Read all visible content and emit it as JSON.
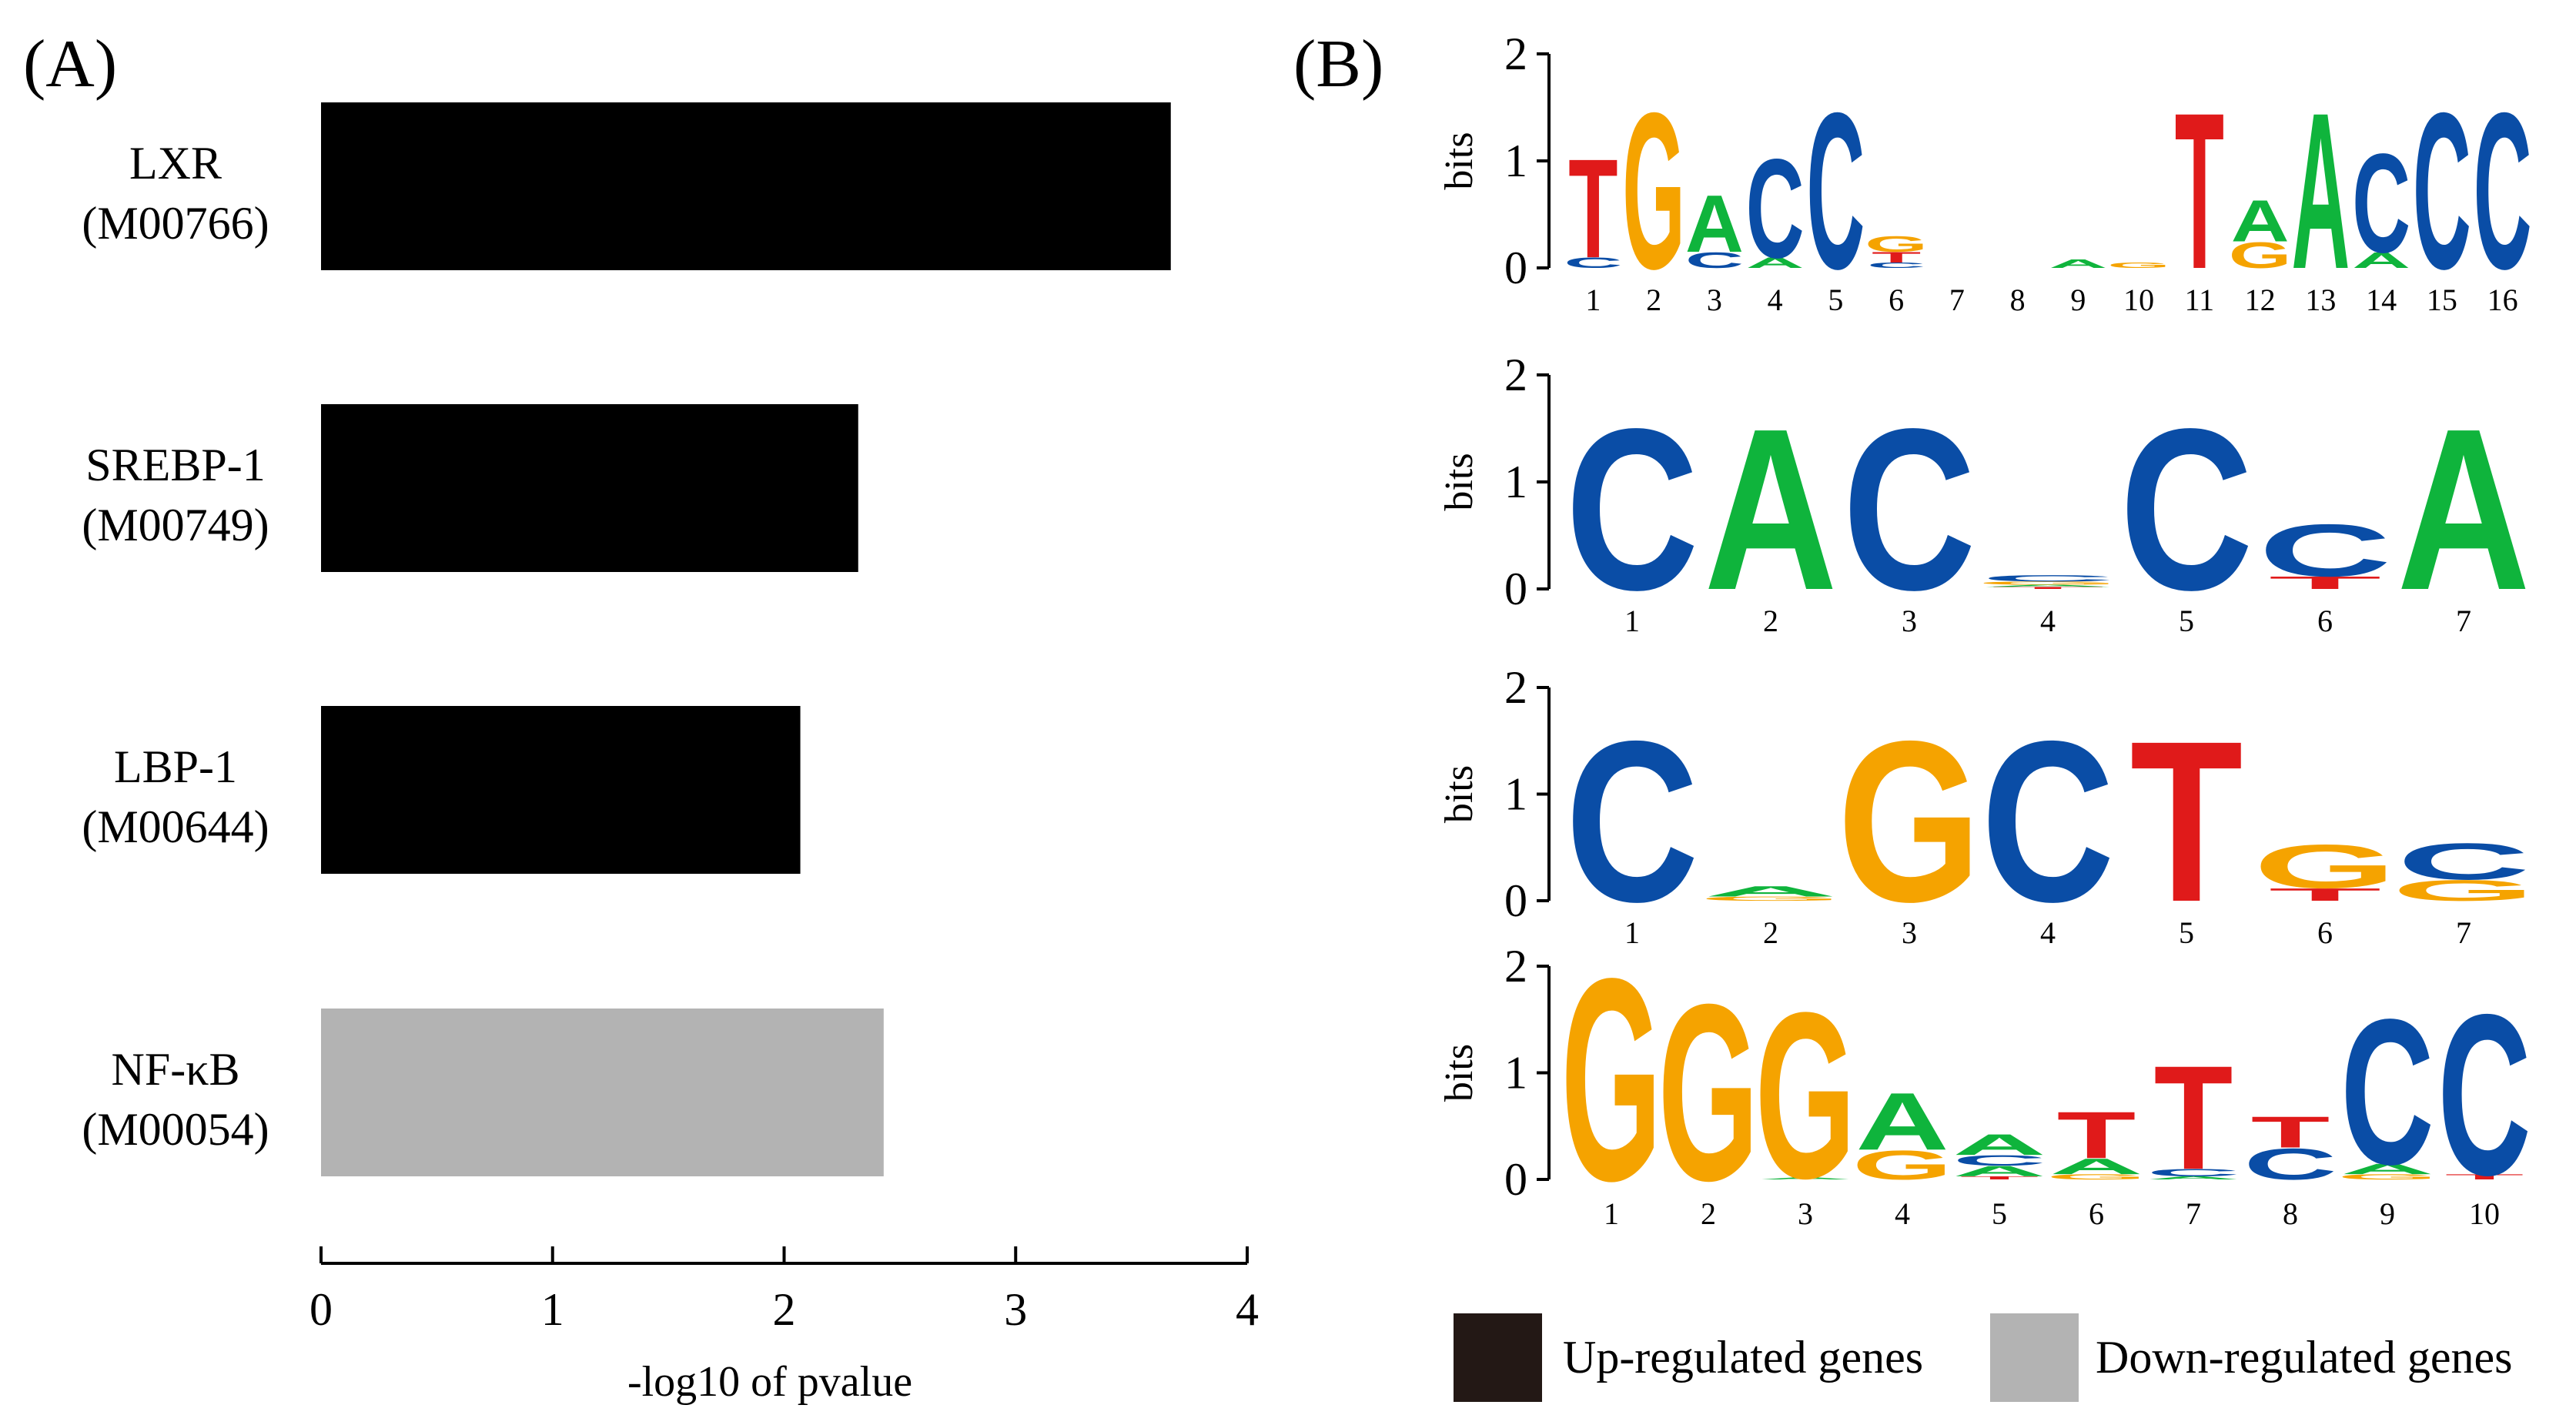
{
  "panel_a_label": "(A)",
  "panel_b_label": "(B)",
  "colors": {
    "up": "#000000",
    "down": "#b3b3b3",
    "A": "#0fb43c",
    "C": "#0a4da6",
    "G": "#f5a300",
    "T": "#e01a1a",
    "legend_up": "#231815"
  },
  "chart_data": [
    {
      "type": "bar",
      "orientation": "horizontal",
      "title": "",
      "xlabel": "-log10 of pvalue",
      "ylabel": "",
      "xlim": [
        0,
        4
      ],
      "xticks": [
        "0",
        "1",
        "2",
        "3",
        "4"
      ],
      "bars": [
        {
          "name": "LXR",
          "id": "(M00766)",
          "value": 3.67,
          "group": "up"
        },
        {
          "name": "SREBP-1",
          "id": "(M00749)",
          "value": 2.32,
          "group": "up"
        },
        {
          "name": "LBP-1",
          "id": "(M00644)",
          "value": 2.07,
          "group": "up"
        },
        {
          "name": "NF-κB",
          "id": "(M00054)",
          "value": 2.43,
          "group": "down"
        }
      ],
      "legend": [
        {
          "key": "up",
          "label": "Up-regulated genes"
        },
        {
          "key": "down",
          "label": "Down-regulated genes"
        }
      ]
    },
    {
      "type": "sequence-logo",
      "ylabel": "bits",
      "ylim": [
        0,
        2
      ],
      "yticks": [
        "0",
        "1",
        "2"
      ],
      "motifs": [
        {
          "positions": [
            [
              [
                "C",
                0.1
              ],
              [
                "T",
                0.95
              ]
            ],
            [
              [
                "G",
                1.5
              ]
            ],
            [
              [
                "C",
                0.15
              ],
              [
                "A",
                0.55
              ]
            ],
            [
              [
                "A",
                0.1
              ],
              [
                "C",
                0.95
              ]
            ],
            [
              [
                "C",
                1.5
              ]
            ],
            [
              [
                "C",
                0.05
              ],
              [
                "T",
                0.1
              ],
              [
                "G",
                0.15
              ]
            ],
            [],
            [],
            [
              [
                "A",
                0.08
              ]
            ],
            [
              [
                "G",
                0.05
              ]
            ],
            [
              [
                "T",
                1.5
              ]
            ],
            [
              [
                "G",
                0.25
              ],
              [
                "A",
                0.4
              ]
            ],
            [
              [
                "A",
                1.5
              ]
            ],
            [
              [
                "A",
                0.15
              ],
              [
                "C",
                0.95
              ]
            ],
            [
              [
                "C",
                1.5
              ]
            ],
            [
              [
                "C",
                1.5
              ]
            ]
          ]
        },
        {
          "positions": [
            [
              [
                "C",
                1.55
              ]
            ],
            [
              [
                "A",
                1.55
              ]
            ],
            [
              [
                "C",
                1.55
              ]
            ],
            [
              [
                "T",
                0.02
              ],
              [
                "A",
                0.02
              ],
              [
                "G",
                0.03
              ],
              [
                "C",
                0.06
              ]
            ],
            [
              [
                "C",
                1.55
              ]
            ],
            [
              [
                "T",
                0.12
              ],
              [
                "C",
                0.5
              ]
            ],
            [
              [
                "A",
                1.55
              ]
            ]
          ]
        },
        {
          "positions": [
            [
              [
                "C",
                1.55
              ]
            ],
            [
              [
                "G",
                0.04
              ],
              [
                "A",
                0.1
              ]
            ],
            [
              [
                "G",
                1.55
              ]
            ],
            [
              [
                "C",
                1.55
              ]
            ],
            [
              [
                "T",
                1.55
              ]
            ],
            [
              [
                "T",
                0.12
              ],
              [
                "G",
                0.42
              ]
            ],
            [
              [
                "G",
                0.2
              ],
              [
                "C",
                0.35
              ]
            ]
          ]
        },
        {
          "positions": [
            [
              [
                "G",
                1.95
              ]
            ],
            [
              [
                "G",
                1.7
              ]
            ],
            [
              [
                "A",
                0.02
              ],
              [
                "G",
                1.6
              ]
            ],
            [
              [
                "G",
                0.28
              ],
              [
                "A",
                0.55
              ]
            ],
            [
              [
                "T",
                0.03
              ],
              [
                "A",
                0.1
              ],
              [
                "C",
                0.1
              ],
              [
                "A",
                0.2
              ]
            ],
            [
              [
                "G",
                0.05
              ],
              [
                "A",
                0.15
              ],
              [
                "T",
                0.45
              ]
            ],
            [
              [
                "A",
                0.03
              ],
              [
                "C",
                0.07
              ],
              [
                "T",
                1.0
              ]
            ],
            [
              [
                "C",
                0.3
              ],
              [
                "T",
                0.3
              ]
            ],
            [
              [
                "G",
                0.05
              ],
              [
                "A",
                0.1
              ],
              [
                "C",
                1.4
              ]
            ],
            [
              [
                "T",
                0.05
              ],
              [
                "C",
                1.55
              ]
            ]
          ]
        }
      ]
    }
  ]
}
